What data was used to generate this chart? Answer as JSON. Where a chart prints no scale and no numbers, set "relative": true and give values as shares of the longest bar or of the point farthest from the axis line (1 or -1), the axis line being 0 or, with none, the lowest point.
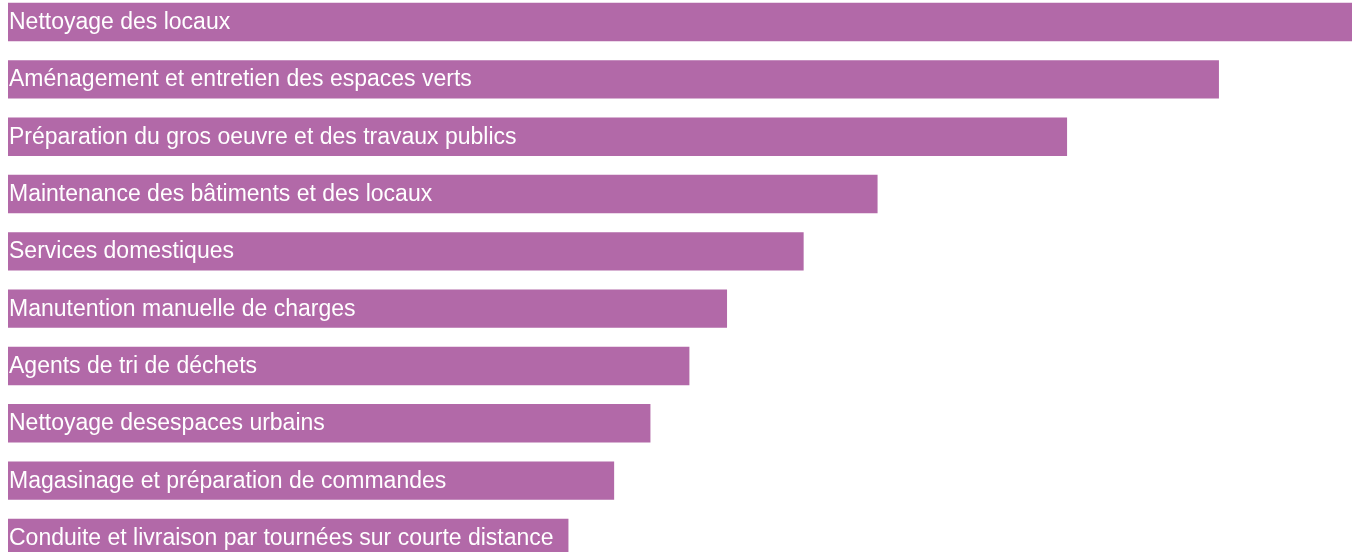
{
  "chart_data": {
    "type": "bar",
    "orientation": "horizontal",
    "relative": true,
    "categories": [
      "Nettoyage des locaux",
      "Aménagement et entretien des espaces verts",
      "Préparation du gros oeuvre et des travaux publics",
      "Maintenance des bâtiments et des locaux",
      "Services domestiques",
      "Manutention manuelle de charges",
      "Agents de tri de déchets",
      "Nettoyage desespaces urbains",
      "Magasinage et préparation de commandes",
      "Conduite et livraison par tournées sur courte distance"
    ],
    "values": [
      1,
      0.901,
      0.788,
      0.647,
      0.592,
      0.535,
      0.507,
      0.478,
      0.451,
      0.417
    ],
    "color": "#b269a8"
  }
}
